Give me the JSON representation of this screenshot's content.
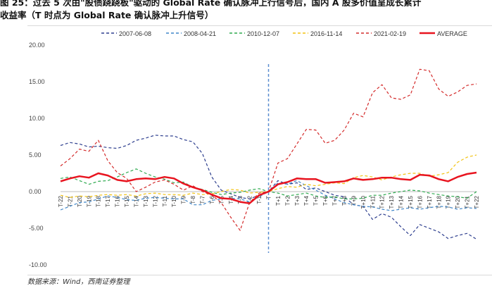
{
  "header": {
    "line1": "图 25：过去 5 次由\"股债跷跷板\"驱动的 Global Rate 确认脉冲上行信号后，国内 A 股多价值呈成长累计",
    "line2": "收益率（T 时点为 Global Rate 确认脉冲上升信号）"
  },
  "source": "数据来源：Wind，西南证券整理",
  "chart_data": {
    "type": "line",
    "title": "",
    "xlabel": "",
    "ylabel": "",
    "ylim": [
      -10,
      20
    ],
    "yticks": [
      "20.00",
      "15.00",
      "10.00",
      "5.00",
      "0.00",
      "-5.00",
      "-10.00"
    ],
    "ytick_values": [
      20,
      15,
      10,
      5,
      0,
      -5,
      -10
    ],
    "categories": [
      "T-22",
      "T-21",
      "T-20",
      "T-19",
      "T-18",
      "T-17",
      "T-16",
      "T-15",
      "T-14",
      "T-13",
      "T-12",
      "T-11",
      "T-10",
      "T-9",
      "T-8",
      "T-7",
      "T-6",
      "T-5",
      "T-4",
      "T-3",
      "T-2",
      "T-1",
      "T",
      "T+1",
      "T+2",
      "T+3",
      "T+4",
      "T+5",
      "T+6",
      "T+7",
      "T+8",
      "T+9",
      "T+10",
      "T+11",
      "T+12",
      "T+13",
      "T+14",
      "T+15",
      "T+16",
      "T+17",
      "T+18",
      "T+19",
      "T+20",
      "T+21",
      "T+22"
    ],
    "event_index": 22,
    "legend_position": "top",
    "grid": false,
    "series": [
      {
        "name": "2007-06-08",
        "color": "#2e3f8f",
        "dash": "dashed",
        "values": [
          6.3,
          6.7,
          6.5,
          6.1,
          6.2,
          6.0,
          5.9,
          6.3,
          7.0,
          7.3,
          7.7,
          7.6,
          7.6,
          7.1,
          6.8,
          5.2,
          2.0,
          0.2,
          -0.3,
          -0.8,
          -1.0,
          -0.5,
          0.0,
          1.5,
          1.0,
          1.2,
          0.3,
          0.5,
          0.0,
          -0.5,
          -0.7,
          -1.8,
          -2.0,
          -3.8,
          -3.0,
          -3.5,
          -4.8,
          -6.0,
          -4.5,
          -5.0,
          -5.5,
          -6.4,
          -6.0,
          -5.7,
          -6.5
        ]
      },
      {
        "name": "2008-04-21",
        "color": "#3f86c8",
        "dash": "dashed",
        "values": [
          -2.5,
          -2.0,
          -1.5,
          -1.4,
          -1.0,
          -0.6,
          -0.8,
          -1.1,
          -1.2,
          -0.9,
          -0.8,
          -0.9,
          -1.0,
          -1.0,
          -1.8,
          -1.8,
          -1.2,
          -1.0,
          -0.9,
          -1.0,
          -1.4,
          -0.7,
          0.0,
          1.2,
          1.0,
          1.5,
          0.8,
          0.2,
          -0.5,
          -1.0,
          -1.5,
          -1.8,
          -2.0,
          -2.1,
          -2.4,
          -2.6,
          -2.4,
          -2.2,
          -2.4,
          -2.2,
          -2.0,
          -2.1,
          -2.4,
          -2.2,
          -2.3
        ]
      },
      {
        "name": "2010-12-07",
        "color": "#2eaa4f",
        "dash": "dashed",
        "values": [
          1.8,
          2.0,
          1.5,
          1.0,
          1.4,
          1.5,
          2.0,
          2.6,
          3.1,
          2.5,
          2.0,
          1.7,
          1.2,
          1.3,
          0.6,
          0.3,
          -0.1,
          -0.4,
          -0.2,
          -0.1,
          0.2,
          0.4,
          0.0,
          -0.2,
          -0.6,
          -0.4,
          -0.2,
          -0.6,
          -0.8,
          -0.7,
          -1.0,
          -1.0,
          -0.9,
          -0.5,
          -0.5,
          -0.2,
          0.0,
          0.2,
          0.1,
          -0.2,
          -0.4,
          -0.6,
          -0.7,
          -0.9,
          0.0
        ]
      },
      {
        "name": "2016-11-14",
        "color": "#f2c211",
        "dash": "dashed",
        "values": [
          -0.5,
          -0.8,
          -0.6,
          -0.7,
          -0.5,
          -0.4,
          -0.5,
          -0.4,
          -0.6,
          -0.3,
          -0.2,
          -0.4,
          -0.4,
          -0.5,
          -0.2,
          -0.4,
          -0.3,
          0.0,
          0.3,
          0.2,
          -0.2,
          -0.1,
          0.0,
          0.4,
          0.7,
          0.6,
          1.0,
          0.8,
          1.0,
          1.2,
          1.1,
          1.9,
          2.2,
          2.0,
          1.6,
          2.0,
          2.3,
          2.5,
          2.5,
          2.1,
          2.3,
          2.6,
          4.0,
          4.7,
          5.0
        ]
      },
      {
        "name": "2021-02-19",
        "color": "#d42b2b",
        "dash": "dashed",
        "values": [
          3.5,
          4.5,
          5.8,
          5.5,
          7.0,
          4.2,
          2.6,
          1.8,
          0.0,
          0.6,
          1.3,
          1.6,
          1.0,
          0.2,
          0.8,
          0.0,
          -0.5,
          -1.5,
          -3.5,
          -5.3,
          -1.5,
          -0.2,
          0.0,
          3.9,
          4.5,
          6.5,
          8.5,
          8.4,
          6.6,
          7.0,
          8.4,
          10.7,
          10.2,
          13.5,
          14.6,
          12.8,
          12.6,
          13.2,
          16.7,
          16.5,
          14.0,
          13.0,
          13.6,
          14.5,
          14.7
        ]
      },
      {
        "name": "AVERAGE",
        "color": "#e8141f",
        "dash": "solid",
        "values": [
          1.4,
          1.8,
          2.1,
          1.9,
          2.5,
          2.2,
          1.6,
          1.4,
          1.7,
          1.8,
          1.7,
          2.0,
          1.8,
          1.1,
          0.6,
          0.2,
          -0.4,
          -0.9,
          -1.0,
          -1.4,
          -1.6,
          -0.5,
          0.0,
          1.0,
          1.3,
          1.8,
          1.7,
          1.7,
          1.2,
          1.3,
          1.4,
          1.8,
          1.6,
          1.7,
          1.9,
          1.9,
          1.7,
          1.6,
          2.3,
          2.2,
          1.7,
          1.4,
          2.0,
          2.4,
          2.6
        ]
      }
    ]
  }
}
